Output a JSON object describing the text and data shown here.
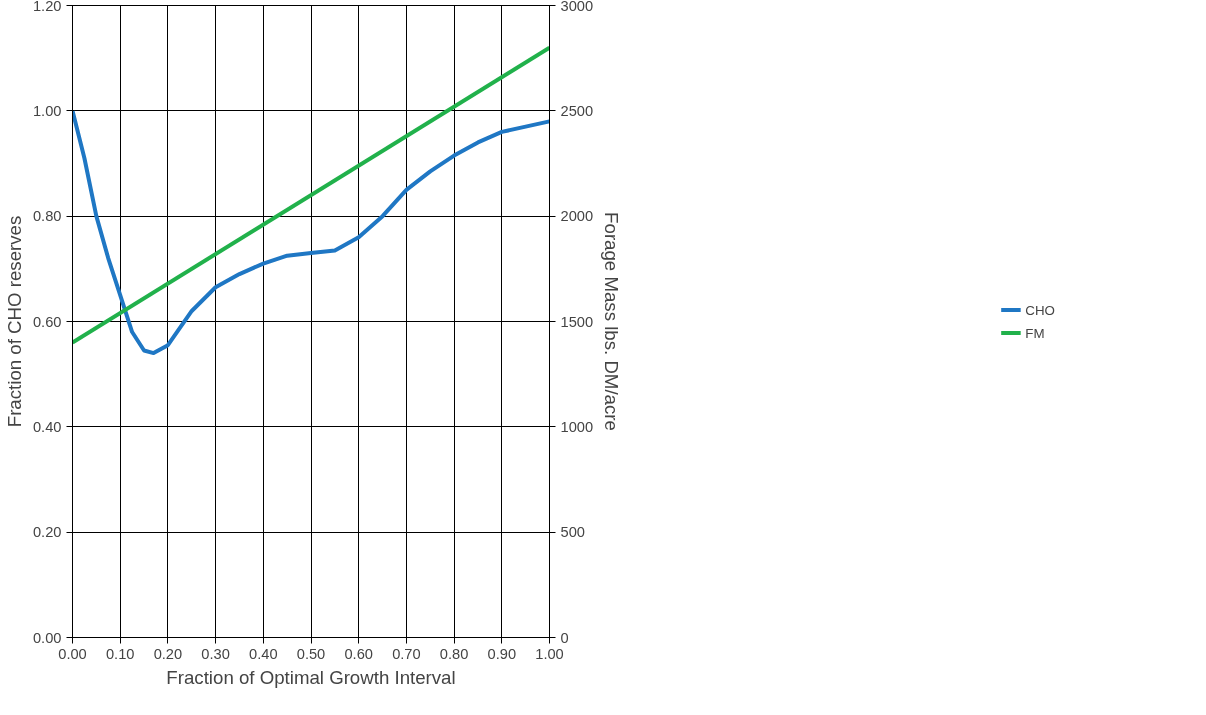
{
  "chart_data": {
    "type": "line",
    "xlabel": "Fraction of Optimal Growth Interval",
    "ylabel": "Fraction of CHO reserves",
    "y2label": "Forage Mass lbs. DM/acre",
    "series": [
      {
        "name": "CHO",
        "color": "#1f77c4",
        "x": [
          0,
          0.025,
          0.05,
          0.075,
          0.1,
          0.125,
          0.15,
          0.17,
          0.2,
          0.25,
          0.3,
          0.35,
          0.4,
          0.45,
          0.5,
          0.55,
          0.6,
          0.65,
          0.7,
          0.75,
          0.8,
          0.85,
          0.9,
          0.95,
          1.0
        ],
        "values": [
          1.0,
          0.91,
          0.8,
          0.72,
          0.65,
          0.58,
          0.545,
          0.54,
          0.555,
          0.62,
          0.665,
          0.69,
          0.71,
          0.725,
          0.73,
          0.735,
          0.76,
          0.8,
          0.85,
          0.885,
          0.915,
          0.94,
          0.96,
          0.97,
          0.98
        ]
      },
      {
        "name": "FM",
        "color": "#21b14b",
        "axis": "y2",
        "x": [
          0,
          1.0
        ],
        "values": [
          1400,
          2800
        ]
      }
    ],
    "xlim": [
      0,
      1.0
    ],
    "xticks": [
      {
        "value": 0,
        "label": "0.00"
      },
      {
        "value": 0.1,
        "label": "0.10"
      },
      {
        "value": 0.2,
        "label": "0.20"
      },
      {
        "value": 0.3,
        "label": "0.30"
      },
      {
        "value": 0.4,
        "label": "0.40"
      },
      {
        "value": 0.5,
        "label": "0.50"
      },
      {
        "value": 0.6,
        "label": "0.60"
      },
      {
        "value": 0.7,
        "label": "0.70"
      },
      {
        "value": 0.8,
        "label": "0.80"
      },
      {
        "value": 0.9,
        "label": "0.90"
      },
      {
        "value": 1.0,
        "label": "1.00"
      }
    ],
    "ylim": [
      0,
      1.2
    ],
    "yticks": [
      {
        "value": 0,
        "label": "0.00"
      },
      {
        "value": 0.2,
        "label": "0.20"
      },
      {
        "value": 0.4,
        "label": "0.40"
      },
      {
        "value": 0.6,
        "label": "0.60"
      },
      {
        "value": 0.8,
        "label": "0.80"
      },
      {
        "value": 1.0,
        "label": "1.00"
      },
      {
        "value": 1.2,
        "label": "1.20"
      }
    ],
    "y2lim": [
      0,
      3000
    ],
    "y2ticks": [
      0,
      500,
      1000,
      1500,
      2000,
      2500,
      3000
    ],
    "grid": true,
    "legend": "right",
    "marker": "none",
    "line_style": "solid"
  }
}
